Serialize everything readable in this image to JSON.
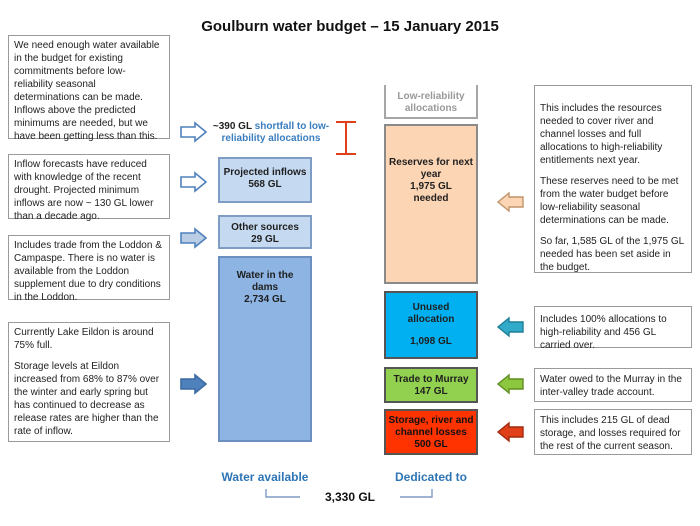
{
  "title": "Goulburn water budget – 15 January 2015",
  "left_notes": [
    "We need enough water available in the budget for existing commitments before low-reliability seasonal determinations can be made. Inflows above the predicted minimums are needed, but we have been getting less than this.",
    "Inflow forecasts have reduced with knowledge of the recent drought. Projected minimum inflows are now ~ 130 GL lower than a decade ago.",
    "Includes trade from the Loddon & Campaspe. There is no water is available from the Loddon supplement due to dry conditions in the Loddon.",
    "Currently Lake Eildon is around 75% full.",
    "Storage levels at Eildon increased from 68% to 87% over the winter and early spring but has continued to decrease as release rates are higher than the rate of inflow."
  ],
  "shortfall": {
    "prefix": "~390 GL ",
    "highlight": "shortfall to low-",
    "line2": "reliability allocations"
  },
  "available": {
    "projected_inflows": {
      "label": "Projected inflows",
      "value": "568 GL"
    },
    "other_sources": {
      "label": "Other sources",
      "value": "29 GL"
    },
    "water_in_dams": {
      "label1": "Water in the",
      "label2": "dams",
      "value": "2,734 GL"
    }
  },
  "dedicated": {
    "low_reliability": {
      "label1": "Low-reliability",
      "label2": "allocations"
    },
    "reserves": {
      "label1": "Reserves for next",
      "label2": "year",
      "value": "1,975 GL",
      "suffix": "needed"
    },
    "unused": {
      "label1": "Unused",
      "label2": "allocation",
      "value": "1,098 GL"
    },
    "trade": {
      "label": "Trade to Murray",
      "value": "147 GL"
    },
    "storage_losses": {
      "label1": "Storage, river and",
      "label2": "channel losses",
      "value": "500 GL"
    }
  },
  "right_notes": {
    "reserves": [
      "This includes the resources needed to cover river and channel losses and full allocations to high-reliability entitlements next year.",
      "These reserves need to be met from the water budget before low-reliability seasonal determinations can be made.",
      "So far, 1,585 GL of the 1,975 GL needed has been set aside in the budget."
    ],
    "unused": "Includes 100% allocations to high-reliability and 456 GL carried over.",
    "trade": "Water owed to the Murray in the inter-valley trade account.",
    "losses": "This includes 215 GL of dead storage, and losses required for the rest of the current season."
  },
  "footer": {
    "available_label": "Water available",
    "dedicated_label": "Dedicated to",
    "total": "3,330 GL"
  },
  "colors": {
    "arrow_blue": "#4f81bd",
    "arrow_peach": "#fcd5b4",
    "arrow_teal": "#31a9c8",
    "arrow_green": "#8dc63f",
    "arrow_red": "#e0401a",
    "shortfall_marker": "#e0401a"
  }
}
